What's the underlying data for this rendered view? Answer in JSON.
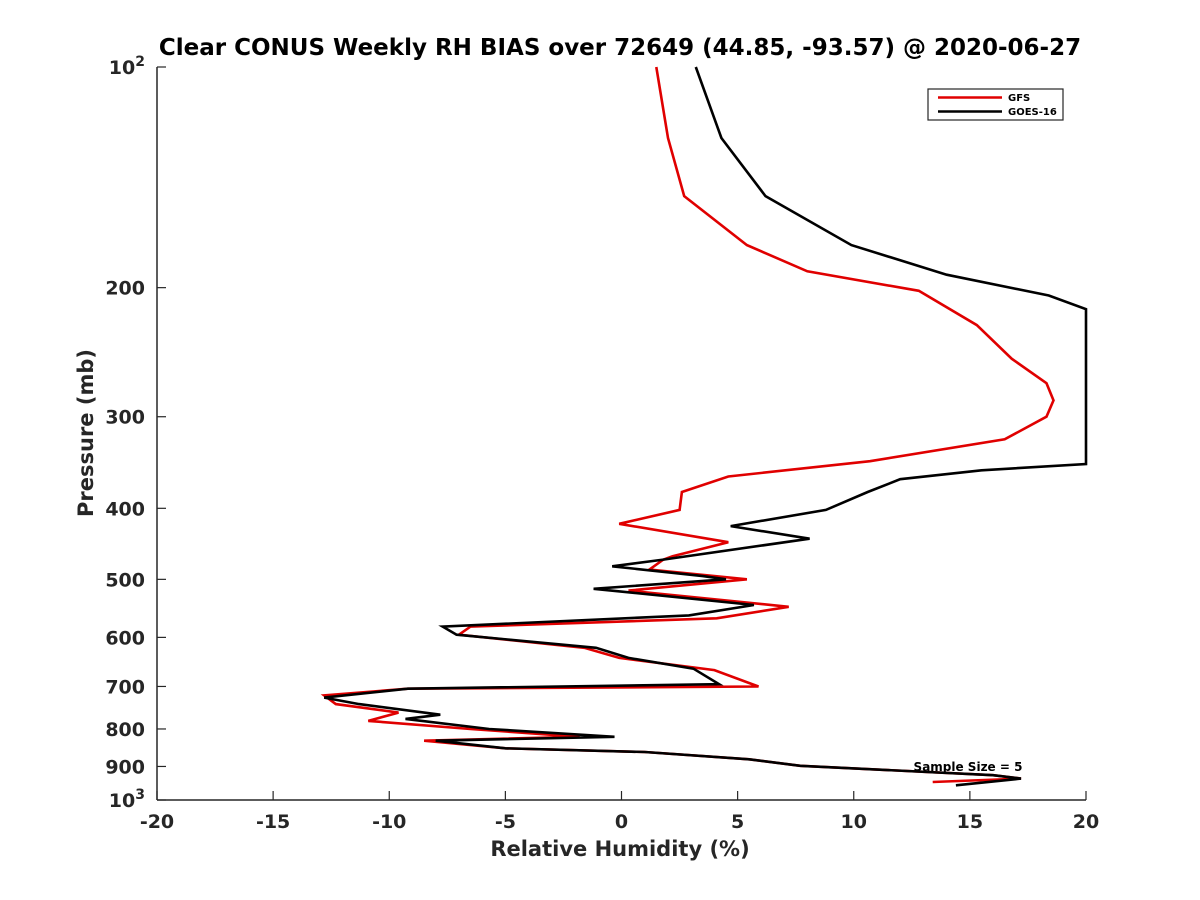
{
  "chart_data": {
    "type": "line",
    "title": "Clear CONUS Weekly RH BIAS over 72649 (44.85, -93.57) @ 2020-06-27",
    "xlabel": "Relative Humidity (%)",
    "ylabel": "Pressure (mb)",
    "xlim": [
      -20,
      20
    ],
    "ylim": [
      100,
      1000
    ],
    "y_scale": "log",
    "y_reversed": true,
    "grid": false,
    "legend_position": "top-right",
    "x_ticks": [
      "-20",
      "-15",
      "-10",
      "-5",
      "0",
      "5",
      "10",
      "15",
      "20"
    ],
    "x_tick_values": [
      -20,
      -15,
      -10,
      -5,
      0,
      5,
      10,
      15,
      20
    ],
    "y_ticks": [
      {
        "value": 100,
        "base": "10",
        "exp": "2"
      },
      {
        "value": 200,
        "base": "200",
        "exp": ""
      },
      {
        "value": 300,
        "base": "300",
        "exp": ""
      },
      {
        "value": 400,
        "base": "400",
        "exp": ""
      },
      {
        "value": 500,
        "base": "500",
        "exp": ""
      },
      {
        "value": 600,
        "base": "600",
        "exp": ""
      },
      {
        "value": 700,
        "base": "700",
        "exp": ""
      },
      {
        "value": 800,
        "base": "800",
        "exp": ""
      },
      {
        "value": 900,
        "base": "900",
        "exp": ""
      },
      {
        "value": 1000,
        "base": "10",
        "exp": "3"
      }
    ],
    "annotation": "Sample Size = 5",
    "series": [
      {
        "name": "GFS",
        "color": "#e00000",
        "points": [
          [
            1.5,
            100
          ],
          [
            2.0,
            125
          ],
          [
            2.7,
            150
          ],
          [
            5.4,
            175
          ],
          [
            8.0,
            190
          ],
          [
            12.8,
            202
          ],
          [
            15.3,
            225
          ],
          [
            16.8,
            250
          ],
          [
            18.3,
            270
          ],
          [
            18.6,
            285
          ],
          [
            18.3,
            300
          ],
          [
            16.5,
            322
          ],
          [
            10.7,
            345
          ],
          [
            4.6,
            362
          ],
          [
            2.6,
            380
          ],
          [
            2.5,
            402
          ],
          [
            -0.1,
            420
          ],
          [
            4.6,
            445
          ],
          [
            2.2,
            465
          ],
          [
            1.8,
            470
          ],
          [
            1.2,
            485
          ],
          [
            5.4,
            500
          ],
          [
            0.3,
            518
          ],
          [
            7.2,
            545
          ],
          [
            4.1,
            565
          ],
          [
            -6.5,
            580
          ],
          [
            -7.0,
            595
          ],
          [
            -1.6,
            620
          ],
          [
            -0.1,
            640
          ],
          [
            4.0,
            665
          ],
          [
            5.9,
            700
          ],
          [
            -9.2,
            705
          ],
          [
            -12.8,
            720
          ],
          [
            -12.3,
            740
          ],
          [
            -9.6,
            760
          ],
          [
            -10.9,
            780
          ],
          [
            -6.5,
            800
          ],
          [
            -1.8,
            820
          ],
          [
            -8.5,
            830
          ],
          [
            -5.0,
            850
          ],
          [
            1.0,
            860
          ],
          [
            5.5,
            880
          ],
          [
            7.7,
            898
          ],
          [
            16.0,
            925
          ],
          [
            17.2,
            935
          ],
          [
            13.4,
            945
          ]
        ]
      },
      {
        "name": "GOES-16",
        "color": "#000000",
        "points": [
          [
            3.2,
            100
          ],
          [
            4.3,
            125
          ],
          [
            6.2,
            150
          ],
          [
            9.9,
            175
          ],
          [
            14.0,
            192
          ],
          [
            18.4,
            205
          ],
          [
            20.0,
            214
          ],
          [
            20.0,
            348
          ],
          [
            15.5,
            355
          ],
          [
            12.0,
            365
          ],
          [
            10.6,
            380
          ],
          [
            8.8,
            402
          ],
          [
            4.7,
            423
          ],
          [
            8.1,
            440
          ],
          [
            1.8,
            470
          ],
          [
            -0.4,
            480
          ],
          [
            3.5,
            495
          ],
          [
            4.5,
            500
          ],
          [
            -1.2,
            515
          ],
          [
            5.7,
            542
          ],
          [
            2.9,
            560
          ],
          [
            -7.7,
            580
          ],
          [
            -7.1,
            595
          ],
          [
            -1.1,
            620
          ],
          [
            0.3,
            640
          ],
          [
            3.1,
            662
          ],
          [
            4.2,
            695
          ],
          [
            -9.2,
            705
          ],
          [
            -12.8,
            725
          ],
          [
            -11.3,
            740
          ],
          [
            -7.8,
            765
          ],
          [
            -9.3,
            775
          ],
          [
            -5.7,
            800
          ],
          [
            -0.3,
            820
          ],
          [
            -8.0,
            830
          ],
          [
            -5.0,
            850
          ],
          [
            1.0,
            860
          ],
          [
            5.5,
            880
          ],
          [
            7.7,
            898
          ],
          [
            16.0,
            925
          ],
          [
            17.2,
            935
          ],
          [
            14.4,
            955
          ]
        ]
      }
    ]
  }
}
